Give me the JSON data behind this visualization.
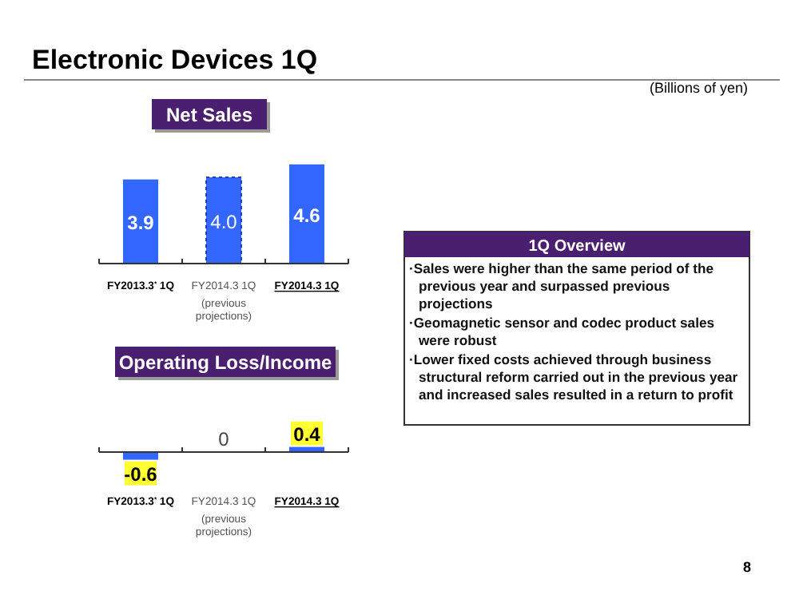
{
  "chart_data": [
    {
      "type": "bar",
      "title": "Net Sales",
      "categories": [
        "FY2013.3$^{*}$ 1Q",
        "FY2014.3 1Q\n(previous\nprojections)",
        "FY2014.3 1Q"
      ],
      "values": [
        3.9,
        4.0,
        4.6
      ],
      "color": "#3366ff",
      "value_labels": [
        "3.9",
        "4.0",
        "4.6"
      ],
      "annotations": [
        "Electronic Devices 1Q",
        "(Billions of yen)",
        "8"
      ]
    },
    {
      "type": "bar",
      "title": "Operating Loss/Income",
      "categories": [
        "FY2013.3$^{*}$ 1Q",
        "FY2014.3 1Q\n(previous\nprojections)",
        "FY2014.3 1Q"
      ],
      "values": [
        -0.6,
        0,
        0.4
      ],
      "color": "#3366ff",
      "data_labels": true
    },
    {
      "type": "other",
      "title": "1Q Overview",
      "annotations": [
        "·Sales were higher than the same period of the previous year and surpassed previous projections",
        "·Geomagnetic sensor and codec product sales were robust",
        "·Lower fixed costs achieved through business structural reform carried out in the previous year and increased sales resulted in a return to profit"
      ]
    }
  ]
}
